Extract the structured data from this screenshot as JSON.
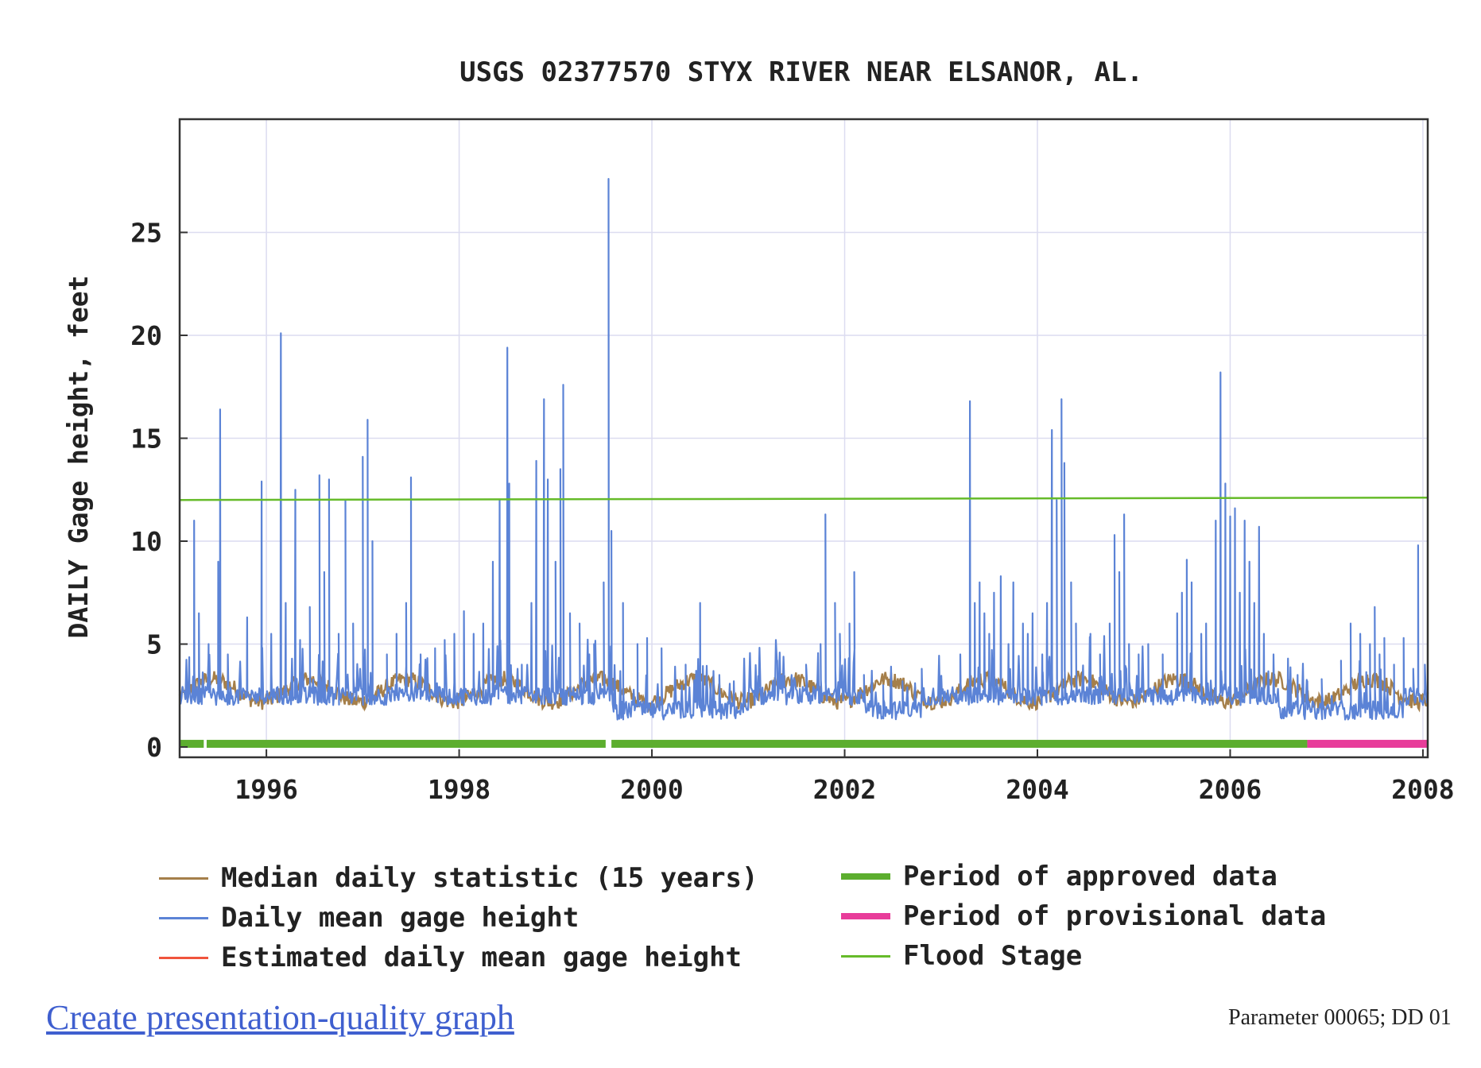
{
  "colors": {
    "median": "#a57f4a",
    "daily": "#5b83d6",
    "estimated": "#f0543c",
    "approved": "#5cae2e",
    "provisional": "#e83c9a",
    "flood": "#66bb2a",
    "grid": "#dcdcf0",
    "frame": "#333333"
  },
  "chart_data": {
    "type": "line",
    "title": "USGS 02377570 STYX RIVER NEAR ELSANOR, AL.",
    "ylabel": "DAILY Gage height, feet",
    "xlabel": "",
    "x_ticks": [
      "1996",
      "1998",
      "2000",
      "2002",
      "2004",
      "2006",
      "2008"
    ],
    "y_ticks": [
      "0",
      "5",
      "10",
      "15",
      "20",
      "25"
    ],
    "xlim": [
      1995.1,
      2008.05
    ],
    "ylim": [
      -0.5,
      30.5
    ],
    "grid": true,
    "legend_position": "bottom",
    "series": [
      {
        "name": "Median daily statistic (15 years)",
        "pattern": "seasonal",
        "summer_value": 3.3,
        "winter_value": 2.2
      },
      {
        "name": "Daily mean gage height",
        "baseline": 2.3,
        "low_periods": [
          [
            1999.6,
            2001.0
          ],
          [
            2002.2,
            2002.8
          ],
          [
            2006.5,
            2007.8
          ]
        ],
        "low_baseline": 1.6,
        "peaks": [
          [
            1995.2,
            4.0
          ],
          [
            1995.25,
            11.0
          ],
          [
            1995.3,
            6.5
          ],
          [
            1995.4,
            5.0
          ],
          [
            1995.5,
            9.0
          ],
          [
            1995.52,
            16.4
          ],
          [
            1995.6,
            4.5
          ],
          [
            1995.8,
            6.3
          ],
          [
            1995.95,
            12.9
          ],
          [
            1996.05,
            5.5
          ],
          [
            1996.15,
            20.1
          ],
          [
            1996.2,
            7.0
          ],
          [
            1996.3,
            12.5
          ],
          [
            1996.35,
            5.2
          ],
          [
            1996.45,
            6.8
          ],
          [
            1996.55,
            13.2
          ],
          [
            1996.6,
            8.5
          ],
          [
            1996.65,
            13.0
          ],
          [
            1996.75,
            5.5
          ],
          [
            1996.82,
            12.0
          ],
          [
            1996.9,
            6.0
          ],
          [
            1997.0,
            14.1
          ],
          [
            1997.05,
            15.9
          ],
          [
            1997.1,
            10.0
          ],
          [
            1997.25,
            4.5
          ],
          [
            1997.35,
            5.5
          ],
          [
            1997.45,
            7.0
          ],
          [
            1997.5,
            13.1
          ],
          [
            1997.6,
            4.5
          ],
          [
            1997.75,
            4.8
          ],
          [
            1997.85,
            5.2
          ],
          [
            1997.95,
            5.5
          ],
          [
            1998.05,
            6.6
          ],
          [
            1998.15,
            5.5
          ],
          [
            1998.25,
            6.0
          ],
          [
            1998.35,
            9.0
          ],
          [
            1998.42,
            12.0
          ],
          [
            1998.5,
            19.4
          ],
          [
            1998.52,
            12.8
          ],
          [
            1998.65,
            4.0
          ],
          [
            1998.75,
            7.0
          ],
          [
            1998.8,
            13.9
          ],
          [
            1998.88,
            16.9
          ],
          [
            1998.92,
            13.0
          ],
          [
            1999.0,
            9.0
          ],
          [
            1999.05,
            13.5
          ],
          [
            1999.08,
            17.6
          ],
          [
            1999.15,
            6.5
          ],
          [
            1999.25,
            6.0
          ],
          [
            1999.35,
            4.5
          ],
          [
            1999.4,
            5.0
          ],
          [
            1999.5,
            8.0
          ],
          [
            1999.55,
            27.6
          ],
          [
            1999.58,
            10.5
          ],
          [
            1999.7,
            7.0
          ],
          [
            1999.85,
            5.0
          ],
          [
            1999.95,
            5.3
          ],
          [
            2000.1,
            4.8
          ],
          [
            2000.35,
            4.0
          ],
          [
            2000.5,
            7.0
          ],
          [
            2000.7,
            3.5
          ],
          [
            2000.85,
            3.2
          ],
          [
            2001.1,
            3.0
          ],
          [
            2001.3,
            4.2
          ],
          [
            2001.45,
            3.5
          ],
          [
            2001.6,
            4.0
          ],
          [
            2001.75,
            5.0
          ],
          [
            2001.8,
            11.3
          ],
          [
            2001.9,
            7.0
          ],
          [
            2001.95,
            5.5
          ],
          [
            2002.05,
            6.0
          ],
          [
            2002.1,
            8.5
          ],
          [
            2002.2,
            3.5
          ],
          [
            2002.4,
            3.0
          ],
          [
            2002.6,
            3.2
          ],
          [
            2002.8,
            3.8
          ],
          [
            2003.0,
            3.4
          ],
          [
            2003.2,
            4.5
          ],
          [
            2003.3,
            16.8
          ],
          [
            2003.35,
            7.0
          ],
          [
            2003.4,
            8.0
          ],
          [
            2003.45,
            6.5
          ],
          [
            2003.5,
            5.5
          ],
          [
            2003.55,
            7.5
          ],
          [
            2003.62,
            8.3
          ],
          [
            2003.7,
            5.0
          ],
          [
            2003.75,
            8.0
          ],
          [
            2003.85,
            6.0
          ],
          [
            2003.9,
            5.5
          ],
          [
            2003.95,
            6.5
          ],
          [
            2004.05,
            4.5
          ],
          [
            2004.1,
            7.0
          ],
          [
            2004.15,
            15.4
          ],
          [
            2004.2,
            12.0
          ],
          [
            2004.25,
            16.9
          ],
          [
            2004.28,
            13.8
          ],
          [
            2004.35,
            8.0
          ],
          [
            2004.4,
            6.0
          ],
          [
            2004.55,
            5.5
          ],
          [
            2004.65,
            4.5
          ],
          [
            2004.75,
            6.0
          ],
          [
            2004.8,
            10.3
          ],
          [
            2004.85,
            8.5
          ],
          [
            2004.9,
            11.3
          ],
          [
            2004.95,
            5.0
          ],
          [
            2005.05,
            4.5
          ],
          [
            2005.15,
            5.0
          ],
          [
            2005.3,
            4.5
          ],
          [
            2005.45,
            6.5
          ],
          [
            2005.5,
            7.5
          ],
          [
            2005.55,
            9.1
          ],
          [
            2005.6,
            8.0
          ],
          [
            2005.7,
            5.5
          ],
          [
            2005.75,
            6.0
          ],
          [
            2005.85,
            11.0
          ],
          [
            2005.9,
            18.2
          ],
          [
            2005.95,
            12.8
          ],
          [
            2006.0,
            11.2
          ],
          [
            2006.05,
            11.6
          ],
          [
            2006.1,
            7.5
          ],
          [
            2006.15,
            11.0
          ],
          [
            2006.2,
            9.0
          ],
          [
            2006.25,
            7.0
          ],
          [
            2006.3,
            10.7
          ],
          [
            2006.35,
            5.5
          ],
          [
            2006.45,
            4.5
          ],
          [
            2006.6,
            4.3
          ],
          [
            2006.7,
            3.5
          ],
          [
            2006.8,
            3.2
          ],
          [
            2006.95,
            3.3
          ],
          [
            2007.15,
            4.2
          ],
          [
            2007.25,
            6.0
          ],
          [
            2007.35,
            5.5
          ],
          [
            2007.45,
            5.0
          ],
          [
            2007.5,
            6.8
          ],
          [
            2007.55,
            4.5
          ],
          [
            2007.6,
            5.3
          ],
          [
            2007.7,
            4.0
          ],
          [
            2007.8,
            5.3
          ],
          [
            2007.9,
            3.8
          ],
          [
            2007.95,
            9.8
          ],
          [
            2008.02,
            4.0
          ]
        ]
      },
      {
        "name": "Estimated daily mean gage height",
        "values": []
      },
      {
        "name": "Period of approved data",
        "ranges": [
          [
            1995.1,
            1995.35
          ],
          [
            1995.38,
            1999.52
          ],
          [
            1999.58,
            2006.8
          ]
        ]
      },
      {
        "name": "Period of provisional data",
        "ranges": [
          [
            2006.8,
            2008.05
          ]
        ]
      },
      {
        "name": "Flood Stage",
        "value": 12.0
      }
    ]
  },
  "legend": {
    "median": "Median daily statistic (15 years)",
    "daily": "Daily mean gage height",
    "estimated": "Estimated daily mean gage height",
    "approved": "Period of approved data",
    "provisional": "Period of provisional data",
    "flood": "Flood Stage"
  },
  "footer": {
    "link": "Create presentation-quality graph",
    "param": "Parameter 00065; DD 01"
  }
}
